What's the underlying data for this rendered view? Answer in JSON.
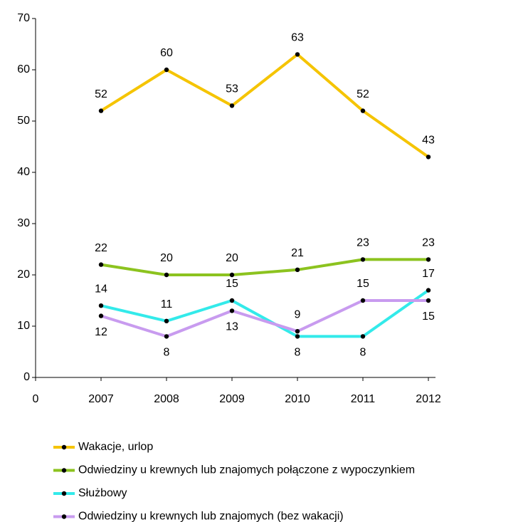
{
  "chart_data": {
    "type": "line",
    "categories": [
      "0",
      "2007",
      "2008",
      "2009",
      "2010",
      "2011",
      "2012"
    ],
    "series": [
      {
        "name": "Wakacje, urlop",
        "color": "#f5c400",
        "values": [
          null,
          52,
          60,
          53,
          63,
          52,
          43
        ]
      },
      {
        "name": "Odwiedziny u krewnych lub znajomych połączone z wypoczynkiem",
        "color": "#8cc31f",
        "values": [
          null,
          22,
          20,
          20,
          21,
          23,
          23
        ]
      },
      {
        "name": "Służbowy",
        "color": "#33eaea",
        "values": [
          null,
          14,
          11,
          15,
          8,
          8,
          17
        ]
      },
      {
        "name": "Odwiedziny u krewnych lub znajomych (bez wakacji)",
        "color": "#c89bef",
        "values": [
          null,
          12,
          8,
          13,
          9,
          15,
          15
        ]
      }
    ],
    "ylim": [
      0,
      70
    ],
    "yticks": [
      0,
      10,
      20,
      30,
      40,
      50,
      60,
      70
    ],
    "grid": false,
    "legend": "bottom"
  }
}
